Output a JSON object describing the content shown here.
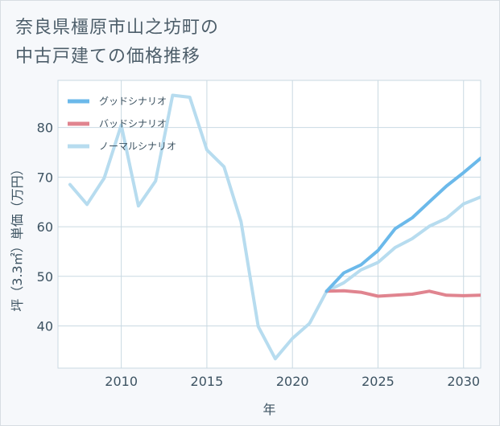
{
  "chart_data": {
    "type": "line",
    "title": [
      "奈良県橿原市山之坊町の",
      "中古戸建ての価格推移"
    ],
    "xlabel": "年",
    "ylabel": "坪（3.3㎡）単価（万円）",
    "xlim": [
      2006.3,
      2031
    ],
    "ylim": [
      31.5,
      89.5
    ],
    "x_ticks": [
      2010,
      2015,
      2020,
      2025,
      2030
    ],
    "y_ticks": [
      40,
      50,
      60,
      70,
      80
    ],
    "grid": true,
    "legend_position": "top-left",
    "series": [
      {
        "name": "グッドシナリオ",
        "color": "#6bb9ea",
        "x": [
          2022,
          2023,
          2024,
          2025,
          2026,
          2027,
          2028,
          2029,
          2030,
          2031
        ],
        "y": [
          47.0,
          50.7,
          52.3,
          55.2,
          59.6,
          61.8,
          65.0,
          68.2,
          70.9,
          73.8
        ]
      },
      {
        "name": "バッドシナリオ",
        "color": "#e0848f",
        "x": [
          2022,
          2023,
          2024,
          2025,
          2026,
          2027,
          2028,
          2029,
          2030,
          2031
        ],
        "y": [
          47.0,
          47.1,
          46.8,
          46.0,
          46.2,
          46.4,
          47.0,
          46.2,
          46.1,
          46.2
        ]
      },
      {
        "name": "ノーマルシナリオ",
        "color": "#b7dcef",
        "x": [
          2007,
          2008,
          2009,
          2010,
          2011,
          2012,
          2013,
          2014,
          2015,
          2016,
          2017,
          2018,
          2019,
          2020,
          2021,
          2022,
          2023,
          2024,
          2025,
          2026,
          2027,
          2028,
          2029,
          2030,
          2031
        ],
        "y": [
          68.5,
          64.5,
          69.8,
          80.5,
          64.2,
          69.2,
          86.5,
          86.1,
          75.5,
          72.1,
          61.0,
          39.9,
          33.4,
          37.5,
          40.5,
          47.0,
          48.7,
          51.3,
          52.8,
          55.8,
          57.6,
          60.1,
          61.7,
          64.6,
          66.0
        ]
      }
    ]
  }
}
